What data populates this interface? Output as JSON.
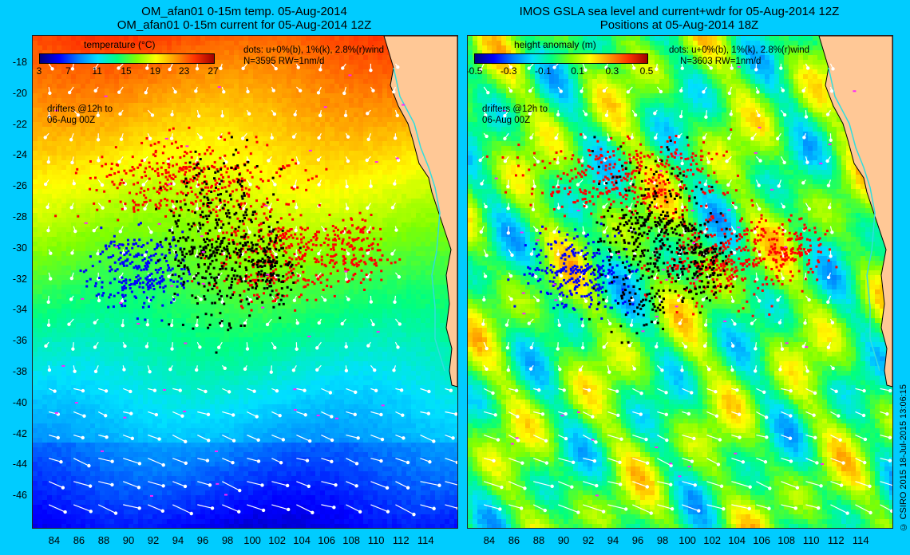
{
  "left_panel": {
    "title_line1": "OM_afan01 0-15m temp. 05-Aug-2014",
    "title_line2": "OM_afan01 0-15m current for 05-Aug-2014 12Z",
    "colorbar_title": "temperature (°C)",
    "colorbar_ticks": [
      "3",
      "7",
      "11",
      "15",
      "19",
      "23",
      "27"
    ],
    "legend_dots": "dots: u+0%(b), 1%(k), 2.8%(r)wind",
    "legend_count": "N=3595 RW=1nm/d",
    "drifters_line1": "drifters @12h to",
    "drifters_line2": "06-Aug 00Z"
  },
  "right_panel": {
    "title_line1": "IMOS GSLA sea level and current+wdr for 05-Aug-2014 12Z",
    "title_line2": "Positions at 05-Aug-2014 18Z",
    "colorbar_title": "height anomaly (m)",
    "colorbar_ticks": [
      "-0.5",
      "-0.3",
      "-0.1",
      "0.1",
      "0.3",
      "0.5"
    ],
    "legend_dots": "dots: u+0%(b), 1%(k), 2.8%(r)wind",
    "legend_count": "N=3603 RW=1nm/d",
    "drifters_line1": "drifters @12h to",
    "drifters_line2": "06-Aug 00Z"
  },
  "axes": {
    "y_ticks": [
      "-18",
      "-20",
      "-22",
      "-24",
      "-26",
      "-28",
      "-30",
      "-32",
      "-34",
      "-36",
      "-38",
      "-40",
      "-42",
      "-44",
      "-46"
    ],
    "x_ticks": [
      "84",
      "86",
      "88",
      "90",
      "92",
      "94",
      "96",
      "98",
      "100",
      "102",
      "104",
      "106",
      "108",
      "110",
      "112",
      "114"
    ],
    "lon_range": [
      82.2,
      116.5
    ],
    "lat_range": [
      -16.2,
      -48.0
    ]
  },
  "credit": "© CSIRO 2015   18-Jul-2015 13:06:15",
  "colors": {
    "background": "#00ccff",
    "dot_blue": "#0000ff",
    "dot_black": "#000000",
    "dot_red": "#ff0000",
    "land": "#ffc896",
    "coast_line": "#33dddd",
    "magenta": "#ff22ff"
  }
}
